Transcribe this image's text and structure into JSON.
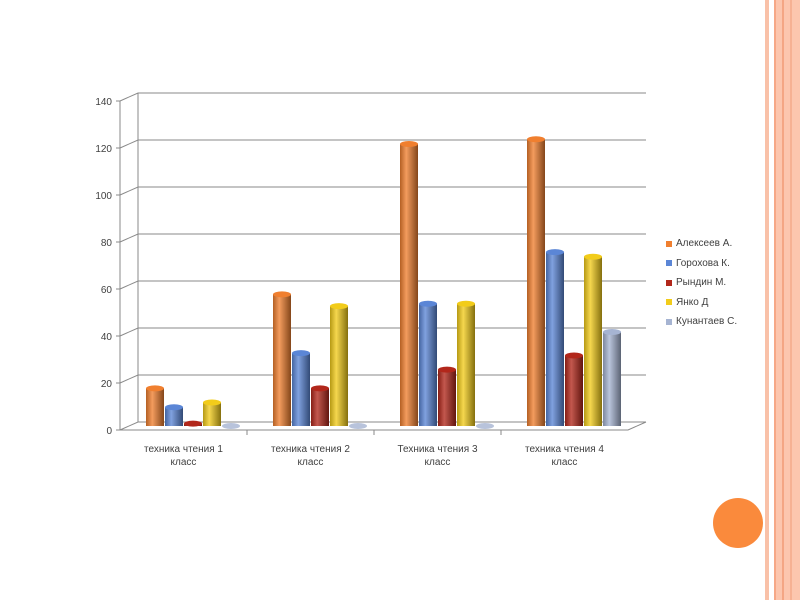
{
  "chart_data": {
    "type": "bar",
    "title": "",
    "xlabel": "",
    "ylabel": "",
    "ylim": [
      0,
      140
    ],
    "yticks": [
      0,
      20,
      40,
      60,
      80,
      100,
      120,
      140
    ],
    "grid": true,
    "legend_position": "right",
    "categories": [
      [
        "техника чтения 1",
        "класс"
      ],
      [
        "техника чтения 2",
        "класс"
      ],
      [
        "Техника чтения 3",
        "класс"
      ],
      [
        "техника чтения 4",
        "класс"
      ]
    ],
    "series": [
      {
        "name": "Алексеев А.",
        "color": "#f07f2f",
        "values": [
          16,
          56,
          120,
          122
        ]
      },
      {
        "name": "Горохова К.",
        "color": "#5b86d6",
        "values": [
          8,
          31,
          52,
          74
        ]
      },
      {
        "name": "Рындин М.",
        "color": "#b2271b",
        "values": [
          1,
          16,
          24,
          30
        ]
      },
      {
        "name": "Янко Д",
        "color": "#f2cc1a",
        "values": [
          10,
          51,
          52,
          72
        ]
      },
      {
        "name": "Кунантаев С.",
        "color": "#a6b4d2",
        "values": [
          0,
          0,
          0,
          40
        ]
      }
    ]
  }
}
